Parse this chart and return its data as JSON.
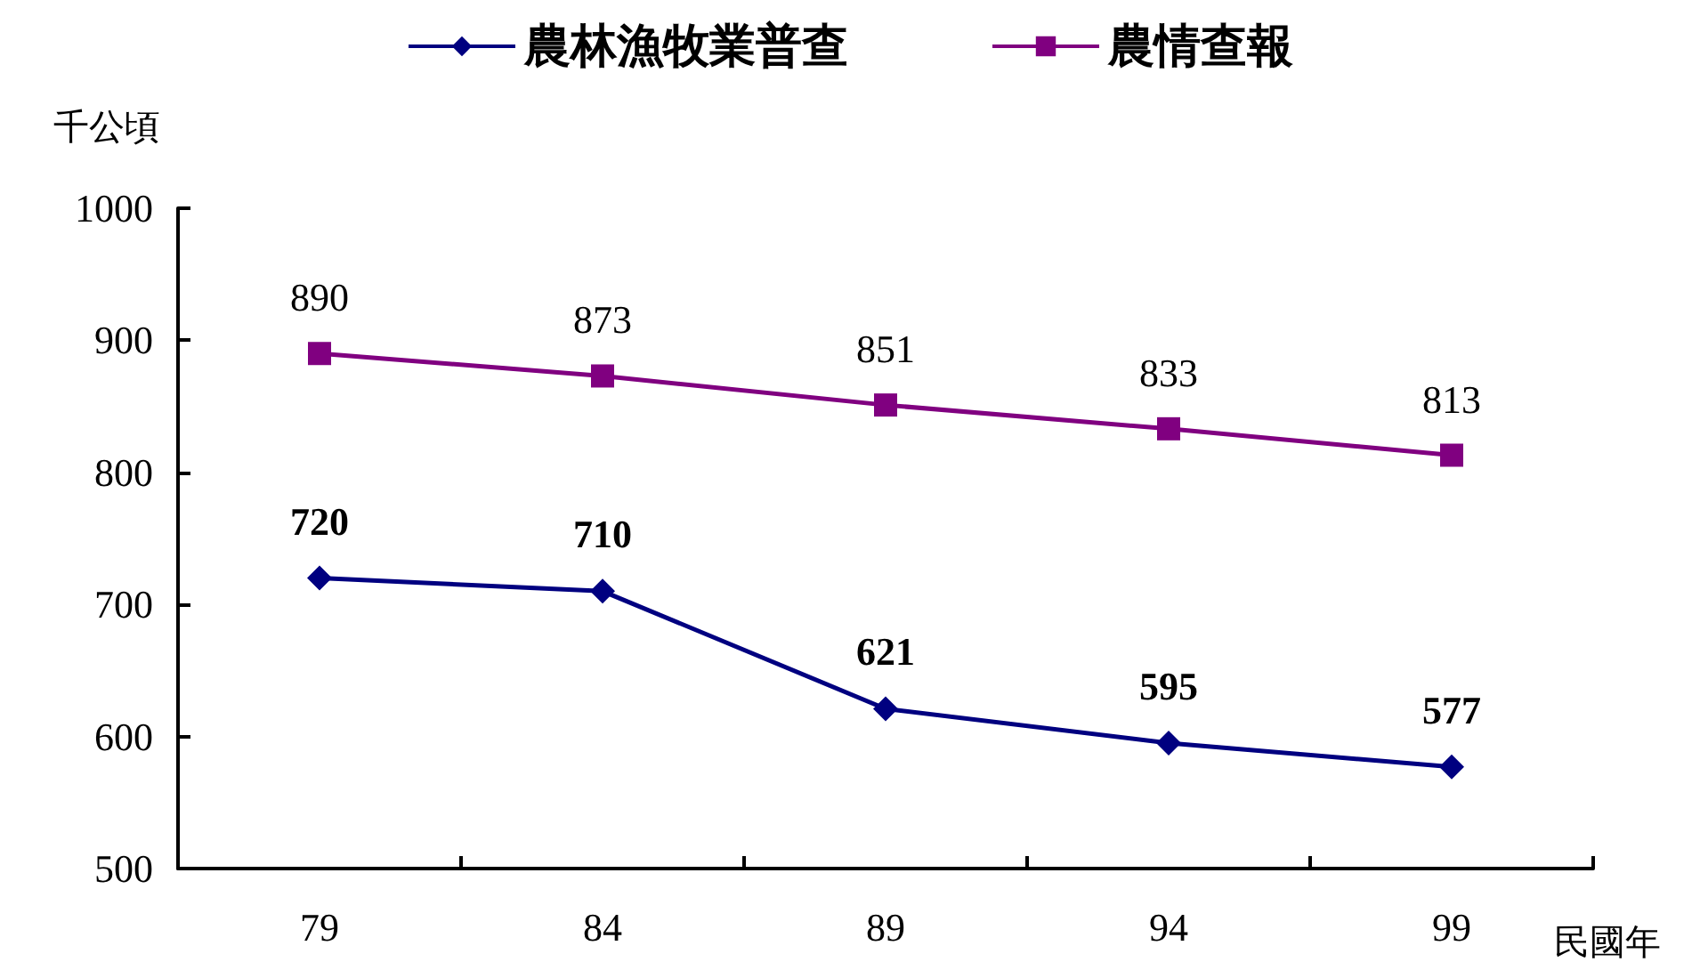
{
  "chart_data": {
    "type": "line",
    "xlabel": "民國年",
    "ylabel": "千公頃",
    "categories": [
      "79",
      "84",
      "89",
      "94",
      "99"
    ],
    "series": [
      {
        "name": "農林漁牧業普查",
        "color": "#000080",
        "marker": "diamond",
        "values": [
          720,
          710,
          621,
          595,
          577
        ]
      },
      {
        "name": "農情查報",
        "color": "#800080",
        "marker": "square",
        "values": [
          890,
          873,
          851,
          833,
          813
        ]
      }
    ],
    "ylim": [
      500,
      1000
    ],
    "yticks": [
      500,
      600,
      700,
      800,
      900,
      1000
    ],
    "grid": false,
    "legend": "top",
    "data_labels": true
  }
}
